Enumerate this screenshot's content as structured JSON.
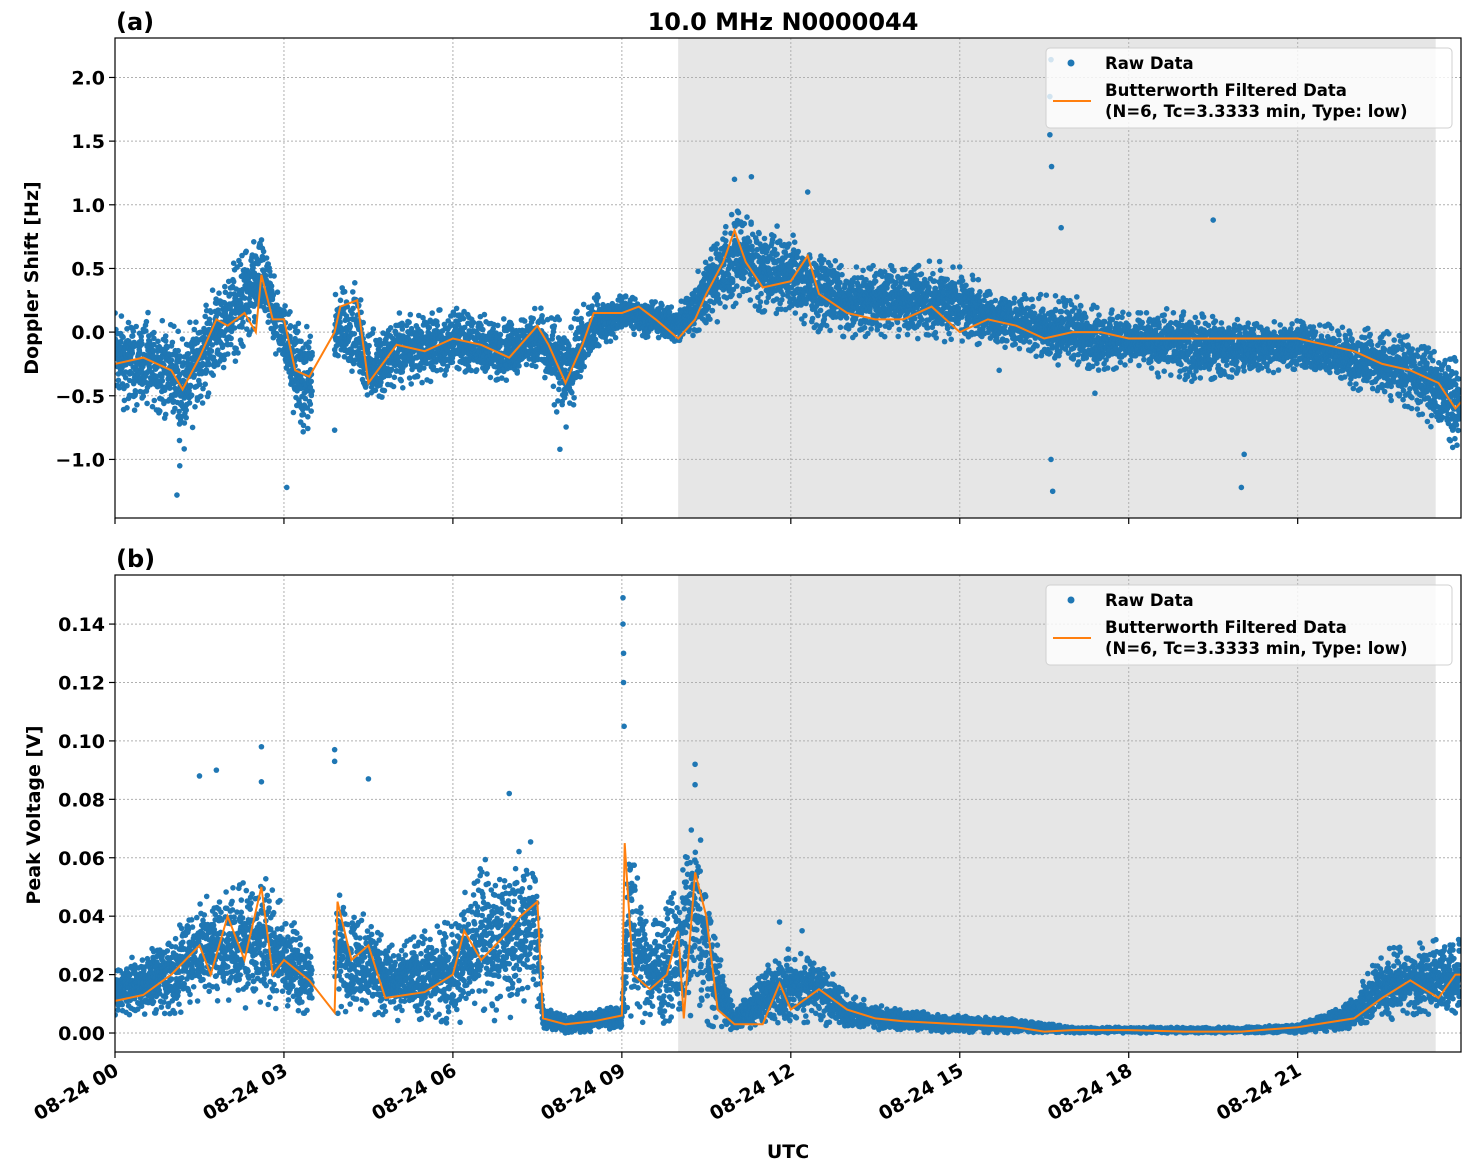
{
  "title": "10.0 MHz N0000044",
  "xlabel": "UTC",
  "x_tick_labels": [
    "08-24 00",
    "08-24 03",
    "08-24 06",
    "08-24 09",
    "08-24 12",
    "08-24 15",
    "08-24 18",
    "08-24 21"
  ],
  "x_tick_hours": [
    0,
    3,
    6,
    9,
    12,
    15,
    18,
    21
  ],
  "colors": {
    "raw": "#1f77b4",
    "filtered": "#ff7f0e",
    "shade": "#e6e6e6",
    "grid": "#b0b0b0"
  },
  "chart_data": [
    {
      "type": "scatter+line",
      "panel_label": "(a)",
      "ylabel": "Doppler Shift [Hz]",
      "xlim_hours": [
        0,
        23.9
      ],
      "ylim": [
        -1.46,
        2.31
      ],
      "y_ticks": [
        -1.0,
        -0.5,
        0.0,
        0.5,
        1.0,
        1.5,
        2.0
      ],
      "y_tick_labels": [
        "−1.0",
        "−0.5",
        "0.0",
        "0.5",
        "1.0",
        "1.5",
        "2.0"
      ],
      "grid": true,
      "shaded_interval_hours": [
        10.0,
        23.45
      ],
      "data_gap_hours": [
        3.5,
        3.9
      ],
      "legend": {
        "placement": "top-right",
        "entries": [
          "Raw Data",
          "Butterworth Filtered Data",
          "(N=6, Tc=3.3333 min, Type: low)"
        ]
      },
      "filtered": {
        "x_hours": [
          0,
          0.5,
          1,
          1.2,
          1.5,
          1.8,
          2,
          2.3,
          2.5,
          2.6,
          2.8,
          3,
          3.2,
          3.45,
          3.9,
          4.0,
          4.3,
          4.5,
          5,
          5.5,
          6,
          6.5,
          7,
          7.2,
          7.5,
          7.7,
          8.0,
          8.3,
          8.5,
          9,
          9.3,
          9.6,
          10,
          10.3,
          10.5,
          10.8,
          11,
          11.2,
          11.5,
          12,
          12.3,
          12.5,
          13,
          13.5,
          14,
          14.5,
          15,
          15.5,
          16,
          16.5,
          17,
          17.5,
          18,
          19,
          20,
          21,
          21.5,
          22,
          22.5,
          23,
          23.5,
          23.8,
          23.9
        ],
        "y": [
          -0.25,
          -0.2,
          -0.3,
          -0.45,
          -0.2,
          0.1,
          0.05,
          0.15,
          0.0,
          0.45,
          0.1,
          0.1,
          -0.3,
          -0.35,
          0.0,
          0.2,
          0.25,
          -0.4,
          -0.1,
          -0.15,
          -0.05,
          -0.1,
          -0.2,
          -0.1,
          0.05,
          -0.1,
          -0.4,
          -0.1,
          0.15,
          0.15,
          0.2,
          0.1,
          -0.05,
          0.1,
          0.3,
          0.55,
          0.8,
          0.55,
          0.35,
          0.4,
          0.6,
          0.3,
          0.15,
          0.1,
          0.1,
          0.2,
          0.0,
          0.1,
          0.05,
          -0.05,
          0.0,
          0.0,
          -0.05,
          -0.05,
          -0.05,
          -0.05,
          -0.1,
          -0.15,
          -0.25,
          -0.3,
          -0.4,
          -0.6,
          -0.55
        ]
      },
      "raw_envelope": {
        "x_hours": [
          0,
          1,
          1.2,
          1.5,
          2,
          2.6,
          3,
          3.3,
          3.5,
          3.9,
          4.3,
          4.5,
          5,
          6,
          7,
          7.5,
          8,
          8.5,
          9,
          10,
          10.5,
          11,
          12,
          12.5,
          13,
          14,
          15,
          15.5,
          16,
          17,
          18,
          19,
          20,
          21,
          22,
          23,
          23.9
        ],
        "low": [
          -0.6,
          -0.7,
          -1.0,
          -0.6,
          -0.3,
          0.0,
          -0.3,
          -0.9,
          -0.7,
          -0.3,
          -0.4,
          -0.6,
          -0.45,
          -0.35,
          -0.4,
          -0.3,
          -0.8,
          -0.2,
          0.0,
          -0.1,
          0.0,
          0.2,
          0.1,
          0.0,
          -0.05,
          -0.05,
          -0.1,
          -0.1,
          -0.15,
          -0.3,
          -0.3,
          -0.4,
          -0.35,
          -0.3,
          -0.45,
          -0.6,
          -1.0
        ],
        "high": [
          0.25,
          0.1,
          0.0,
          0.2,
          0.5,
          0.8,
          0.25,
          0.1,
          0.0,
          0.35,
          0.4,
          0.0,
          0.15,
          0.2,
          0.1,
          0.2,
          0.1,
          0.3,
          0.3,
          0.2,
          0.6,
          1.0,
          0.8,
          0.7,
          0.5,
          0.6,
          0.55,
          0.35,
          0.3,
          0.3,
          0.15,
          0.2,
          0.1,
          0.1,
          0.05,
          0.0,
          -0.2
        ]
      },
      "raw_outliers": [
        [
          1.1,
          -1.28
        ],
        [
          1.15,
          -1.05
        ],
        [
          3.05,
          -1.22
        ],
        [
          3.9,
          -0.77
        ],
        [
          7.9,
          -0.92
        ],
        [
          11.0,
          1.2
        ],
        [
          11.3,
          1.22
        ],
        [
          12.3,
          1.1
        ],
        [
          16.6,
          1.55
        ],
        [
          16.63,
          1.3
        ],
        [
          16.6,
          1.85
        ],
        [
          16.62,
          2.14
        ],
        [
          16.62,
          -1.0
        ],
        [
          16.65,
          -1.25
        ],
        [
          16.8,
          0.82
        ],
        [
          19.5,
          0.88
        ],
        [
          20.0,
          -1.22
        ],
        [
          20.05,
          -0.96
        ],
        [
          17.4,
          -0.48
        ],
        [
          15.7,
          -0.3
        ]
      ]
    },
    {
      "type": "scatter+line",
      "panel_label": "(b)",
      "ylabel": "Peak Voltage [V]",
      "xlim_hours": [
        0,
        23.9
      ],
      "ylim": [
        -0.0065,
        0.1568
      ],
      "y_ticks": [
        0.0,
        0.02,
        0.04,
        0.06,
        0.08,
        0.1,
        0.12,
        0.14
      ],
      "y_tick_labels": [
        "0.00",
        "0.02",
        "0.04",
        "0.06",
        "0.08",
        "0.10",
        "0.12",
        "0.14"
      ],
      "grid": true,
      "shaded_interval_hours": [
        10.0,
        23.45
      ],
      "data_gap_hours": [
        3.5,
        3.9
      ],
      "legend": {
        "placement": "top-right",
        "entries": [
          "Raw Data",
          "Butterworth Filtered Data",
          "(N=6, Tc=3.3333 min, Type: low)"
        ]
      },
      "filtered": {
        "x_hours": [
          0,
          0.5,
          1,
          1.5,
          1.7,
          2,
          2.3,
          2.6,
          2.8,
          3,
          3.45,
          3.9,
          3.95,
          4.2,
          4.5,
          4.8,
          5.5,
          6,
          6.2,
          6.5,
          7,
          7.2,
          7.5,
          7.6,
          8,
          8.5,
          9,
          9.05,
          9.2,
          9.5,
          9.8,
          10,
          10.1,
          10.3,
          10.5,
          10.7,
          11,
          11.5,
          11.8,
          12,
          12.5,
          13,
          13.5,
          14,
          15,
          16,
          16.5,
          17,
          18,
          19,
          20,
          21,
          22,
          22.5,
          23,
          23.5,
          23.8,
          23.9
        ],
        "y": [
          0.011,
          0.013,
          0.02,
          0.03,
          0.02,
          0.04,
          0.025,
          0.05,
          0.02,
          0.025,
          0.018,
          0.007,
          0.045,
          0.025,
          0.03,
          0.012,
          0.014,
          0.02,
          0.035,
          0.025,
          0.035,
          0.04,
          0.045,
          0.005,
          0.003,
          0.004,
          0.006,
          0.065,
          0.02,
          0.015,
          0.02,
          0.035,
          0.005,
          0.055,
          0.04,
          0.008,
          0.003,
          0.003,
          0.017,
          0.008,
          0.015,
          0.008,
          0.005,
          0.004,
          0.003,
          0.002,
          0.0005,
          0.001,
          0.001,
          0.0005,
          0.0005,
          0.002,
          0.005,
          0.012,
          0.018,
          0.012,
          0.02,
          0.02
        ]
      },
      "raw_envelope": {
        "x_hours": [
          0,
          1,
          1.5,
          2,
          2.6,
          3,
          3.45,
          3.9,
          4.5,
          5,
          6,
          6.5,
          7,
          7.5,
          7.6,
          8,
          9,
          9.1,
          9.5,
          10,
          10.3,
          10.6,
          11,
          11.8,
          12.5,
          13,
          14,
          15,
          16,
          17,
          18,
          20,
          21,
          22,
          22.5,
          23,
          23.9
        ],
        "low": [
          0.006,
          0.006,
          0.008,
          0.008,
          0.008,
          0.008,
          0.006,
          0.006,
          0.006,
          0.004,
          0.003,
          0.004,
          0.004,
          0.003,
          0.001,
          0.0,
          0.001,
          0.005,
          0.002,
          0.001,
          0.005,
          0.001,
          0.001,
          0.001,
          0.003,
          0.001,
          0.001,
          0.0,
          0.0,
          0.0,
          0.0,
          0.0,
          0.0,
          0.001,
          0.003,
          0.005,
          0.006
        ],
        "high": [
          0.022,
          0.035,
          0.05,
          0.05,
          0.055,
          0.045,
          0.03,
          0.05,
          0.04,
          0.03,
          0.04,
          0.06,
          0.06,
          0.07,
          0.01,
          0.006,
          0.01,
          0.07,
          0.04,
          0.05,
          0.08,
          0.04,
          0.008,
          0.03,
          0.028,
          0.013,
          0.008,
          0.006,
          0.005,
          0.002,
          0.002,
          0.002,
          0.003,
          0.012,
          0.03,
          0.03,
          0.035
        ]
      },
      "raw_outliers": [
        [
          1.5,
          0.088
        ],
        [
          1.8,
          0.09
        ],
        [
          2.6,
          0.098
        ],
        [
          2.6,
          0.086
        ],
        [
          3.9,
          0.097
        ],
        [
          3.9,
          0.093
        ],
        [
          4.5,
          0.087
        ],
        [
          7.0,
          0.082
        ],
        [
          9.02,
          0.149
        ],
        [
          9.02,
          0.14
        ],
        [
          9.03,
          0.13
        ],
        [
          9.03,
          0.12
        ],
        [
          9.04,
          0.105
        ],
        [
          10.3,
          0.092
        ],
        [
          10.3,
          0.085
        ],
        [
          11.8,
          0.038
        ],
        [
          12.2,
          0.035
        ]
      ]
    }
  ]
}
